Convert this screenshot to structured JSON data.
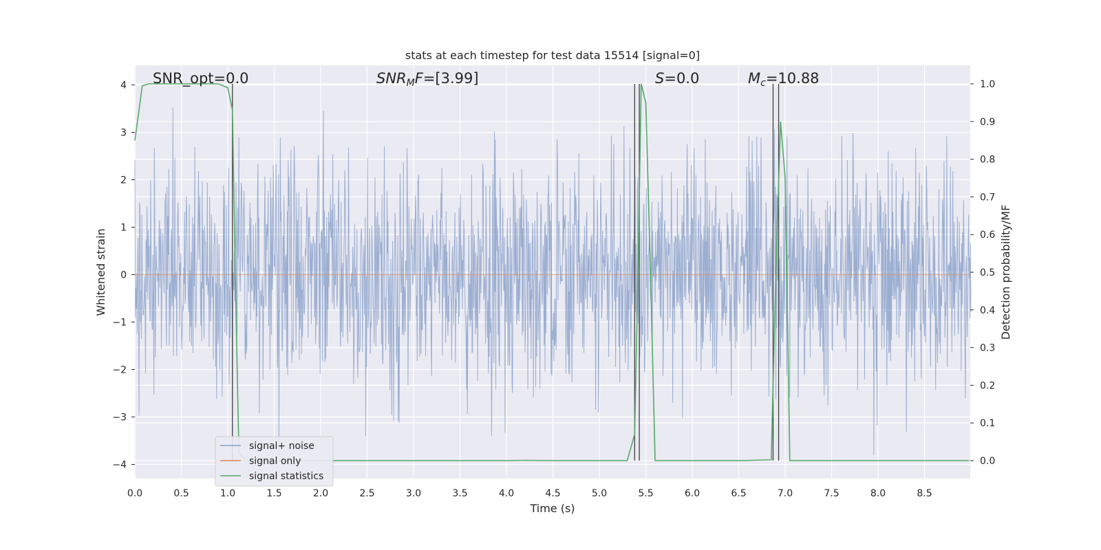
{
  "chart_data": {
    "type": "line",
    "title": "stats at each timestep for test data 15514 [signal=0]",
    "xlabel": "Time (s)",
    "ylabel": "Whitened strain",
    "y2label": "Detection probability/MF",
    "xlim": [
      0.0,
      9.0
    ],
    "ylim": [
      -4.3,
      4.4
    ],
    "y2lim": [
      -0.045,
      1.045
    ],
    "xticks": [
      "0.0",
      "0.5",
      "1.0",
      "1.5",
      "2.0",
      "2.5",
      "3.0",
      "3.5",
      "4.0",
      "4.5",
      "5.0",
      "5.5",
      "6.0",
      "6.5",
      "7.0",
      "7.5",
      "8.0",
      "8.5"
    ],
    "yticks": [
      "−4",
      "−3",
      "−2",
      "−1",
      "0",
      "1",
      "2",
      "3",
      "4"
    ],
    "y2ticks": [
      "0.0",
      "0.1",
      "0.2",
      "0.3",
      "0.4",
      "0.5",
      "0.6",
      "0.7",
      "0.8",
      "0.9",
      "1.0"
    ],
    "grid": true,
    "legend_position": "lower-left",
    "annotations": [
      {
        "text": "SNR_opt=0.0",
        "x": 0.2,
        "y": 4.1
      },
      {
        "text": "SNR_MF=[3.99]",
        "x": 2.6,
        "y": 4.1
      },
      {
        "text": "S=0.0",
        "x": 5.6,
        "y": 4.1
      },
      {
        "text": "M_c=10.88",
        "x": 6.6,
        "y": 4.1
      }
    ],
    "series": [
      {
        "name": "signal+ noise",
        "color": "#4c72b0",
        "style": "dense noise, amplitude approx ±2 typical, peaks to ±3.8",
        "x_range": [
          0.0,
          9.0
        ]
      },
      {
        "name": "signal only",
        "color": "#dd8452",
        "x": [
          0.0,
          9.0
        ],
        "y": [
          0.0,
          0.0
        ]
      },
      {
        "name": "signal statistics",
        "color": "#55a868",
        "axis": "right",
        "x": [
          0.0,
          0.08,
          0.15,
          0.3,
          0.5,
          0.7,
          0.9,
          1.0,
          1.05,
          1.08,
          1.12,
          1.2,
          1.5,
          2.0,
          3.0,
          4.0,
          4.2,
          4.5,
          5.0,
          5.3,
          5.38,
          5.42,
          5.45,
          5.5,
          5.55,
          5.6,
          6.0,
          6.5,
          6.85,
          6.9,
          6.95,
          7.0,
          7.05,
          7.5,
          8.0,
          8.5,
          8.98
        ],
        "y": [
          0.85,
          0.995,
          1.0,
          1.0,
          1.0,
          1.0,
          1.0,
          0.99,
          0.93,
          0.5,
          0.02,
          0.0,
          0.0,
          0.0,
          0.0,
          0.0,
          0.001,
          0.0,
          0.0,
          0.0,
          0.07,
          0.55,
          1.0,
          0.95,
          0.5,
          0.0,
          0.0,
          0.0,
          0.002,
          0.5,
          0.9,
          0.75,
          0.0,
          0.0,
          0.0,
          0.0,
          0.0
        ]
      }
    ],
    "vlines": [
      1.05,
      5.38,
      5.43,
      6.87,
      6.93
    ],
    "vline_color": "#404040"
  },
  "legend": {
    "items": [
      "signal+ noise",
      "signal only",
      "signal statistics"
    ]
  }
}
